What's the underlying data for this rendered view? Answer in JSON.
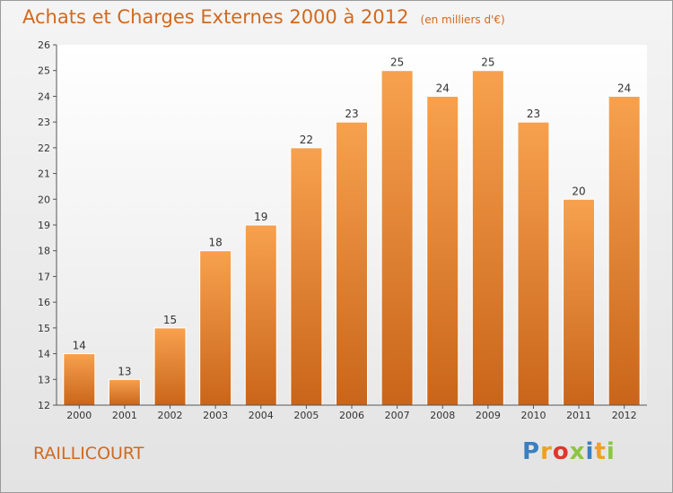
{
  "chart_data": {
    "type": "bar",
    "title": "Achats et Charges Externes 2000 à 2012",
    "subtitle": "(en milliers d'€)",
    "categories": [
      "2000",
      "2001",
      "2002",
      "2003",
      "2004",
      "2005",
      "2006",
      "2007",
      "2008",
      "2009",
      "2010",
      "2011",
      "2012"
    ],
    "values": [
      14,
      13,
      15,
      18,
      19,
      22,
      23,
      25,
      24,
      25,
      23,
      20,
      24
    ],
    "ylim": [
      12,
      26
    ],
    "yticks": [
      12,
      13,
      14,
      15,
      16,
      17,
      18,
      19,
      20,
      21,
      22,
      23,
      24,
      25,
      26
    ],
    "grid": false,
    "legend": "none",
    "bar_color": "#f08c30"
  },
  "commune": "RAILLICOURT",
  "brand": {
    "letters": [
      "P",
      "r",
      "o",
      "x",
      "i",
      "t",
      "i"
    ],
    "colors": [
      "#3a7fc1",
      "#f0a020",
      "#e0352b",
      "#8cc63f",
      "#3a7fc1",
      "#f0a020",
      "#8cc63f"
    ]
  }
}
